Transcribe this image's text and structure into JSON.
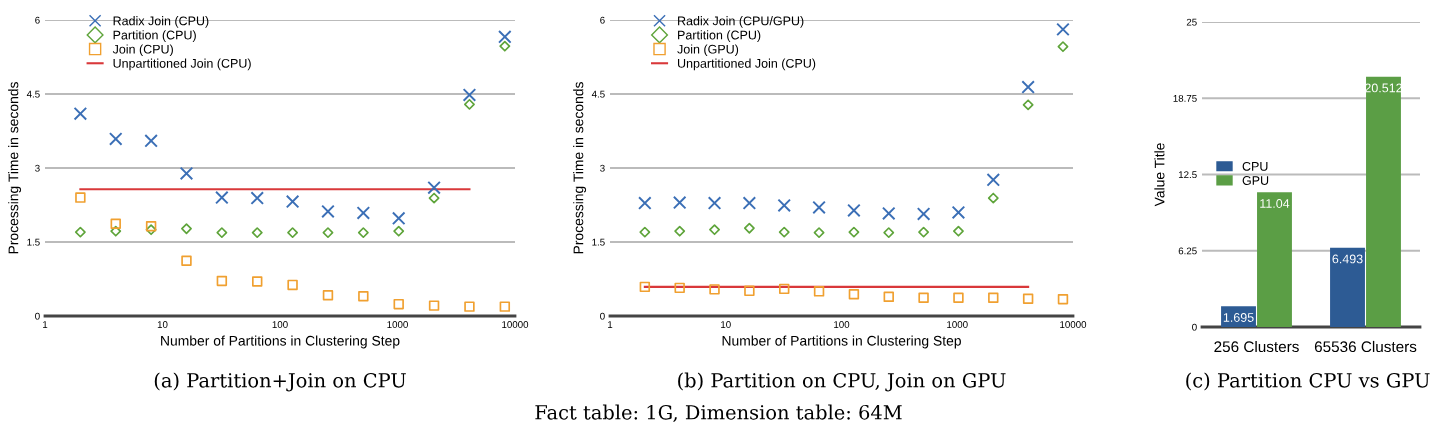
{
  "chart_data": [
    {
      "type": "scatter",
      "xlabel": "Number of Partitions in Clustering Step",
      "ylabel": "Processing Time in seconds",
      "log": "x",
      "xlim": [
        1,
        10000
      ],
      "xticks": [
        1,
        10,
        100,
        1000,
        10000
      ],
      "ylim": [
        0,
        6
      ],
      "yticks": [
        0,
        1.5,
        3,
        4.5,
        6
      ],
      "grid": "y",
      "legend": "top left",
      "x": [
        2,
        4,
        8,
        16,
        32,
        64,
        128,
        256,
        512,
        1024,
        2048,
        4096,
        8192
      ],
      "annotations": [
        "(a) Partition+Join on CPU",
        "Fact table: 1G, Dimension table: 64M"
      ],
      "series": [
        {
          "name": "Radix Join (CPU)",
          "color": "#3b6fb6",
          "marker": "cross",
          "values": [
            4.1,
            3.59,
            3.55,
            2.89,
            2.4,
            2.39,
            2.32,
            2.12,
            2.09,
            1.98,
            2.6,
            4.48,
            5.66
          ]
        },
        {
          "name": "Partition (CPU)",
          "color": "#5ea43a",
          "marker": "diamond",
          "values": [
            1.7,
            1.72,
            1.75,
            1.77,
            1.69,
            1.69,
            1.69,
            1.69,
            1.69,
            1.72,
            2.39,
            4.29,
            5.47
          ]
        },
        {
          "name": "Join (CPU)",
          "color": "#f0a030",
          "marker": "square",
          "values": [
            2.4,
            1.87,
            1.82,
            1.12,
            0.71,
            0.7,
            0.63,
            0.42,
            0.4,
            0.24,
            0.21,
            0.19,
            0.19
          ]
        },
        {
          "name": "Unpartitioned Join (CPU)",
          "type": "line",
          "color": "#d9383a",
          "values": [
            2.57,
            2.57,
            2.57,
            2.57,
            2.57,
            2.57,
            2.57,
            2.57,
            2.57,
            2.57,
            2.57,
            2.57,
            null
          ]
        }
      ]
    },
    {
      "type": "scatter",
      "xlabel": "Number of Partitions in Clustering Step",
      "ylabel": "Processing Time in seconds",
      "log": "x",
      "xlim": [
        1,
        10000
      ],
      "xticks": [
        1,
        10,
        100,
        1000,
        10000
      ],
      "ylim": [
        0,
        6
      ],
      "yticks": [
        0,
        1.5,
        3,
        4.5,
        6
      ],
      "grid": "y",
      "legend": "top left",
      "x": [
        2,
        4,
        8,
        16,
        32,
        64,
        128,
        256,
        512,
        1024,
        2048,
        4096,
        8192
      ],
      "annotations": [
        "(b) Partition on CPU, Join on GPU"
      ],
      "series": [
        {
          "name": "Radix Join (CPU/GPU)",
          "color": "#3b6fb6",
          "marker": "cross",
          "values": [
            2.29,
            2.3,
            2.29,
            2.29,
            2.24,
            2.2,
            2.14,
            2.08,
            2.07,
            2.1,
            2.76,
            4.64,
            5.81
          ]
        },
        {
          "name": "Partition (CPU)",
          "color": "#5ea43a",
          "marker": "diamond",
          "values": [
            1.7,
            1.72,
            1.75,
            1.78,
            1.7,
            1.69,
            1.7,
            1.69,
            1.7,
            1.72,
            2.39,
            4.28,
            5.46
          ]
        },
        {
          "name": "Join (GPU)",
          "color": "#f0a030",
          "marker": "square",
          "values": [
            0.59,
            0.57,
            0.54,
            0.51,
            0.55,
            0.5,
            0.44,
            0.39,
            0.37,
            0.37,
            0.37,
            0.35,
            0.34
          ]
        },
        {
          "name": "Unpartitioned Join (CPU)",
          "type": "line",
          "color": "#d9383a",
          "values": [
            0.59,
            0.59,
            0.59,
            0.59,
            0.59,
            0.59,
            0.59,
            0.59,
            0.59,
            0.59,
            0.59,
            0.59,
            null
          ]
        }
      ]
    },
    {
      "type": "bar",
      "ylabel": "Value Title",
      "categories": [
        "256 Clusters",
        "65536 Clusters"
      ],
      "ylim": [
        0,
        25
      ],
      "yticks": [
        0,
        6.25,
        12.5,
        18.75,
        25
      ],
      "grid": "y",
      "legend": "left",
      "data_labels": true,
      "annotations": [
        "(c) Partition CPU vs GPU"
      ],
      "series": [
        {
          "name": "CPU",
          "color": "#2d5b94",
          "values": [
            1.695,
            6.493
          ]
        },
        {
          "name": "GPU",
          "color": "#5b9e45",
          "values": [
            11.04,
            20.512
          ]
        }
      ]
    }
  ]
}
